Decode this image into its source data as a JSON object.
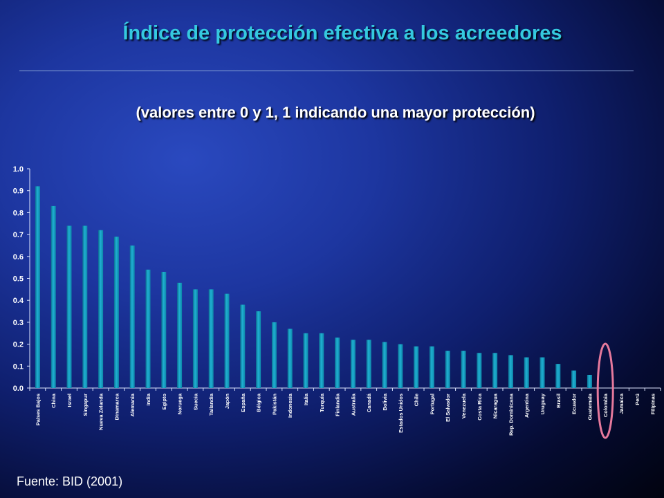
{
  "slide": {
    "title": "Índice de protección efectiva a los acreedores",
    "subtitle": "(valores entre 0 y 1, 1 indicando una mayor protección)",
    "source": "Fuente: BID (2001)",
    "colors": {
      "title": "#35c9df",
      "bar": "#1fb1d3",
      "highlight_ellipse": "#e6799c"
    }
  },
  "chart_data": {
    "type": "bar",
    "ylim": [
      0,
      1.0
    ],
    "yticks": [
      "0.0",
      "0.1",
      "0.2",
      "0.3",
      "0.4",
      "0.5",
      "0.6",
      "0.7",
      "0.8",
      "0.9",
      "1.0"
    ],
    "grid": false,
    "highlight_category": "Colombia",
    "categories": [
      "Países Bajos",
      "China",
      "Israel",
      "Singapur",
      "Nueva Zelanda",
      "Dinamarca",
      "Alemania",
      "India",
      "Egipto",
      "Noruega",
      "Suecia",
      "Tailandia",
      "Japón",
      "España",
      "Bélgica",
      "Pakistán",
      "Indonesia",
      "Italia",
      "Turquía",
      "Finlandia",
      "Australia",
      "Canadá",
      "Bolivia",
      "Estados Unidos",
      "Chile",
      "Portugal",
      "El Salvador",
      "Venezuela",
      "Costa Rica",
      "Nicaragua",
      "Rep. Dominicana",
      "Argentina",
      "Uruguay",
      "Brasil",
      "Ecuador",
      "Guatemala",
      "Colombia",
      "Jamaica",
      "Perú",
      "Filipinas"
    ],
    "values": [
      0.92,
      0.83,
      0.74,
      0.74,
      0.72,
      0.69,
      0.65,
      0.54,
      0.53,
      0.48,
      0.45,
      0.45,
      0.43,
      0.38,
      0.35,
      0.3,
      0.27,
      0.25,
      0.25,
      0.23,
      0.22,
      0.22,
      0.21,
      0.2,
      0.19,
      0.19,
      0.17,
      0.17,
      0.16,
      0.16,
      0.15,
      0.14,
      0.14,
      0.11,
      0.08,
      0.06,
      0,
      0,
      0,
      0
    ]
  }
}
